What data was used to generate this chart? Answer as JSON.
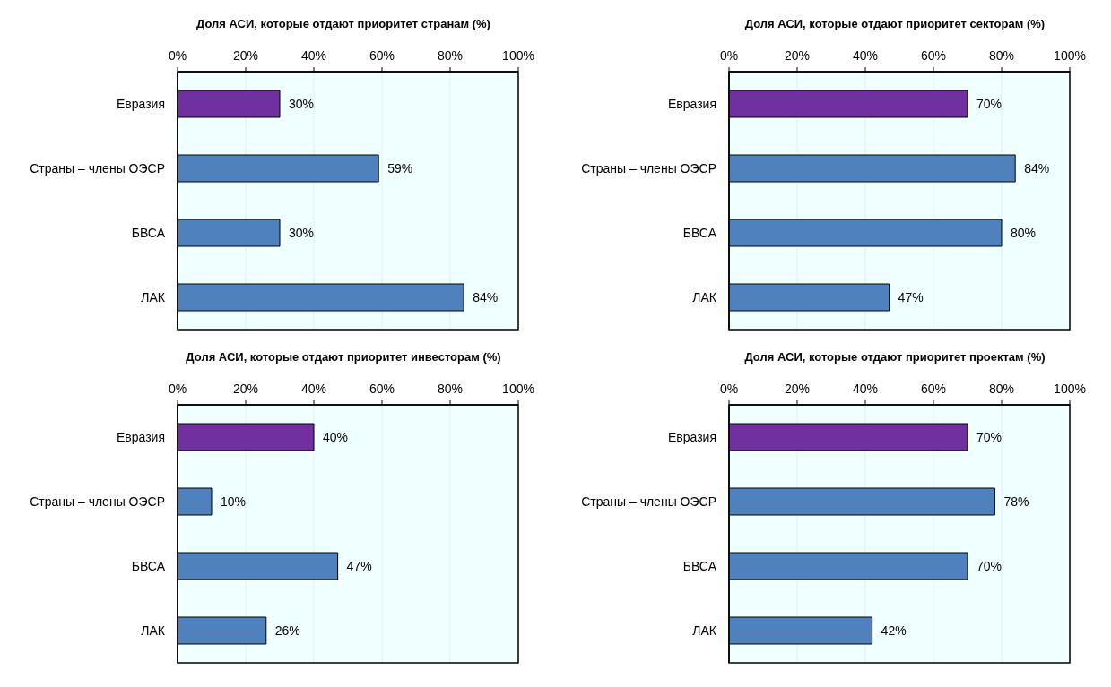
{
  "chart_data": [
    {
      "type": "bar",
      "orientation": "horizontal",
      "title": "Доля АСИ, которые отдают приоритет странам (%)",
      "categories": [
        "Евразия",
        "Страны – члены ОЭСР",
        "БВСА",
        "ЛАК"
      ],
      "values": [
        30,
        59,
        30,
        84
      ],
      "colors": [
        "#7030a0",
        "#4f81bd",
        "#4f81bd",
        "#4f81bd"
      ],
      "value_labels": [
        "30%",
        "59%",
        "30%",
        "84%"
      ],
      "xlim": [
        0,
        100
      ],
      "xticks": [
        {
          "value": 0,
          "label": "0%"
        },
        {
          "value": 20,
          "label": "20%"
        },
        {
          "value": 40,
          "label": "40%"
        },
        {
          "value": 60,
          "label": "60%"
        },
        {
          "value": 80,
          "label": "80%"
        },
        {
          "value": 100,
          "label": "100%"
        }
      ],
      "grid": "x"
    },
    {
      "type": "bar",
      "orientation": "horizontal",
      "title": "Доля АСИ, которые отдают приоритет секторам (%)",
      "categories": [
        "Евразия",
        "Страны – члены ОЭСР",
        "БВСА",
        "ЛАК"
      ],
      "values": [
        70,
        84,
        80,
        47
      ],
      "colors": [
        "#7030a0",
        "#4f81bd",
        "#4f81bd",
        "#4f81bd"
      ],
      "value_labels": [
        "70%",
        "84%",
        "80%",
        "47%"
      ],
      "xlim": [
        0,
        100
      ],
      "xticks": [
        {
          "value": 0,
          "label": "0%"
        },
        {
          "value": 20,
          "label": "20%"
        },
        {
          "value": 40,
          "label": "40%"
        },
        {
          "value": 60,
          "label": "60%"
        },
        {
          "value": 80,
          "label": "80%"
        },
        {
          "value": 100,
          "label": "100%"
        }
      ],
      "grid": "x"
    },
    {
      "type": "bar",
      "orientation": "horizontal",
      "title": "Доля АСИ, которые отдают приоритет инвесторам (%)",
      "categories": [
        "Евразия",
        "Страны – члены ОЭСР",
        "БВСА",
        "ЛАК"
      ],
      "values": [
        40,
        10,
        47,
        26
      ],
      "colors": [
        "#7030a0",
        "#4f81bd",
        "#4f81bd",
        "#4f81bd"
      ],
      "value_labels": [
        "40%",
        "10%",
        "47%",
        "26%"
      ],
      "xlim": [
        0,
        100
      ],
      "xticks": [
        {
          "value": 0,
          "label": "0%"
        },
        {
          "value": 20,
          "label": "20%"
        },
        {
          "value": 40,
          "label": "40%"
        },
        {
          "value": 60,
          "label": "60%"
        },
        {
          "value": 80,
          "label": "80%"
        },
        {
          "value": 100,
          "label": "100%"
        }
      ],
      "grid": "x"
    },
    {
      "type": "bar",
      "orientation": "horizontal",
      "title": "Доля АСИ, которые отдают приоритет проектам (%)",
      "categories": [
        "Евразия",
        "Страны – члены ОЭСР",
        "БВСА",
        "ЛАК"
      ],
      "values": [
        70,
        78,
        70,
        42
      ],
      "colors": [
        "#7030a0",
        "#4f81bd",
        "#4f81bd",
        "#4f81bd"
      ],
      "value_labels": [
        "70%",
        "78%",
        "70%",
        "42%"
      ],
      "xlim": [
        0,
        100
      ],
      "xticks": [
        {
          "value": 0,
          "label": "0%"
        },
        {
          "value": 20,
          "label": "20%"
        },
        {
          "value": 40,
          "label": "40%"
        },
        {
          "value": 60,
          "label": "60%"
        },
        {
          "value": 80,
          "label": "80%"
        },
        {
          "value": 100,
          "label": "100%"
        }
      ],
      "grid": "x"
    }
  ]
}
